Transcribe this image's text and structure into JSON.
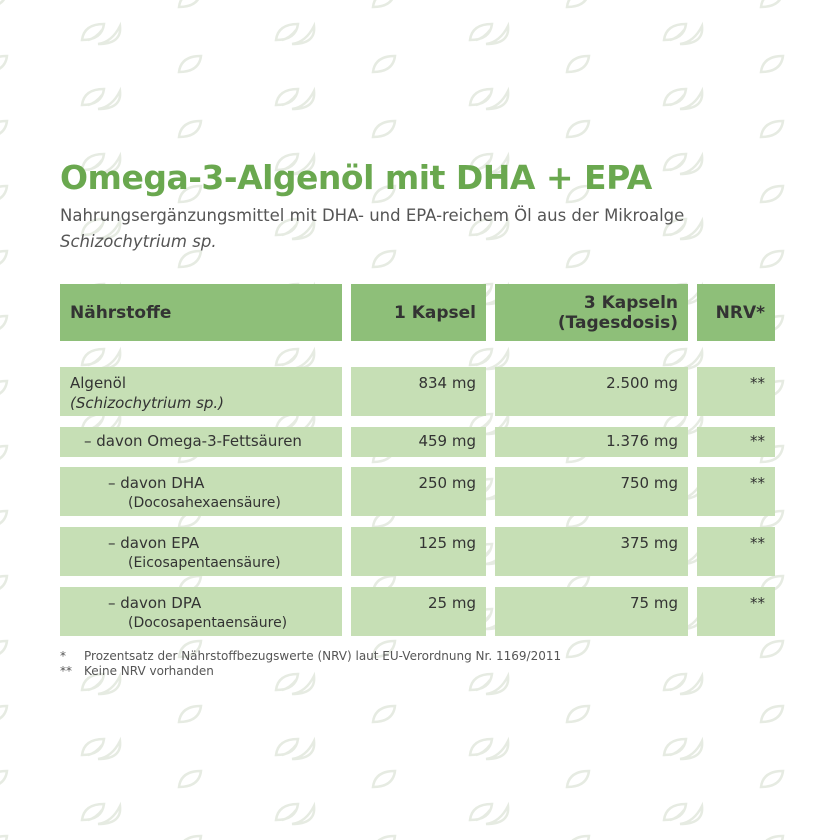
{
  "header": {
    "title": "Omega-3-Algenöl mit DHA + EPA",
    "subtitle": [
      "Nahrungsergänzungsmittel mit DHA- und EPA-reichem Öl aus der Mikroalge",
      "Schizochytrium sp."
    ]
  },
  "table": {
    "header": [
      [
        "Nährstoffe"
      ],
      [
        "1 Kapsel"
      ],
      [
        "3 Kapseln",
        "(Tagesdosis)"
      ],
      [
        "NRV*"
      ]
    ],
    "rows": [
      {
        "name": [
          "Algenöl",
          "(Schizochytrium sp.)"
        ],
        "values": [
          "834 mg",
          "2.500 mg",
          "**"
        ]
      },
      {
        "name": [
          "– davon Omega-3-Fettsäuren"
        ],
        "values": [
          "459 mg",
          "1.376 mg",
          "**"
        ]
      },
      {
        "name": [
          "–  davon DHA",
          "(Docosahexaensäure)"
        ],
        "values": [
          "250 mg",
          "750 mg",
          "**"
        ]
      },
      {
        "name": [
          "–  davon EPA",
          "(Eicosapentaensäure)"
        ],
        "values": [
          "125 mg",
          "375 mg",
          "**"
        ]
      },
      {
        "name": [
          "–  davon DPA",
          "(Docosapentaensäure)"
        ],
        "values": [
          "25 mg",
          "75 mg",
          "**"
        ]
      }
    ]
  },
  "footnotes": [
    {
      "marker": "*",
      "text": "Prozentsatz der Nährstoffbezugswerte (NRV) laut EU-Verordnung Nr. 1169/2011"
    },
    {
      "marker": "**",
      "text": "Keine NRV vorhanden"
    }
  ]
}
